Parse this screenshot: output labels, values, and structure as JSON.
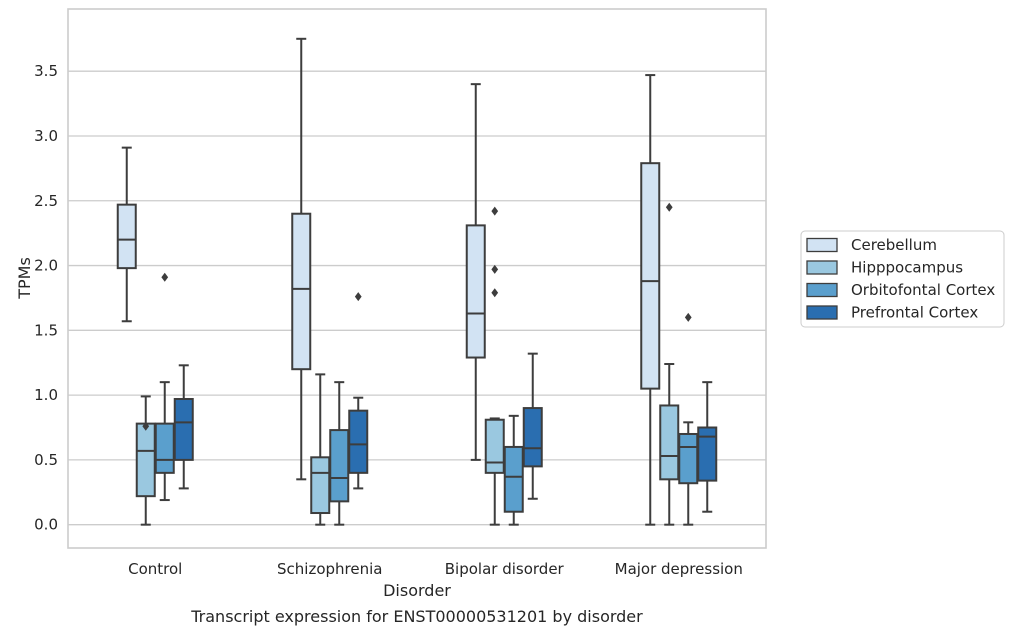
{
  "chart_data": {
    "type": "box",
    "xlabel": "Disorder",
    "ylabel": "TPMs",
    "caption": "Transcript expression for ENST00000531201 by disorder",
    "ylim": [
      -0.18,
      3.98
    ],
    "yticks": [
      0.0,
      0.5,
      1.0,
      1.5,
      2.0,
      2.5,
      3.0,
      3.5
    ],
    "ytick_labels": [
      "0.0",
      "0.5",
      "1.0",
      "1.5",
      "2.0",
      "2.5",
      "3.0",
      "3.5"
    ],
    "grid": "horizontal",
    "legend_position": "right",
    "categories": [
      "Control",
      "Schizophrenia",
      "Bipolar disorder",
      "Major depression"
    ],
    "series": [
      {
        "name": "Cerebellum",
        "color": "#d2e3f3",
        "boxes": [
          {
            "whisker_low": 1.57,
            "q1": 1.98,
            "median": 2.2,
            "q3": 2.47,
            "whisker_high": 2.91,
            "outliers": []
          },
          {
            "whisker_low": 0.35,
            "q1": 1.2,
            "median": 1.82,
            "q3": 2.4,
            "whisker_high": 3.75,
            "outliers": []
          },
          {
            "whisker_low": 0.5,
            "q1": 1.29,
            "median": 1.63,
            "q3": 2.31,
            "whisker_high": 3.4,
            "outliers": []
          },
          {
            "whisker_low": 0.0,
            "q1": 1.05,
            "median": 1.88,
            "q3": 2.79,
            "whisker_high": 3.47,
            "outliers": []
          }
        ]
      },
      {
        "name": "Hipppocampus",
        "color": "#9ac8e0",
        "boxes": [
          {
            "whisker_low": 0.0,
            "q1": 0.22,
            "median": 0.57,
            "q3": 0.78,
            "whisker_high": 0.99,
            "outliers": [
              0.76
            ]
          },
          {
            "whisker_low": 0.0,
            "q1": 0.09,
            "median": 0.4,
            "q3": 0.52,
            "whisker_high": 1.16,
            "outliers": []
          },
          {
            "whisker_low": 0.0,
            "q1": 0.4,
            "median": 0.48,
            "q3": 0.81,
            "whisker_high": 0.82,
            "outliers": [
              2.42,
              1.97,
              1.79
            ]
          },
          {
            "whisker_low": 0.0,
            "q1": 0.35,
            "median": 0.53,
            "q3": 0.92,
            "whisker_high": 1.24,
            "outliers": [
              2.45
            ]
          }
        ]
      },
      {
        "name": "Orbitofontal Cortex",
        "color": "#5a9fcd",
        "boxes": [
          {
            "whisker_low": 0.19,
            "q1": 0.4,
            "median": 0.5,
            "q3": 0.78,
            "whisker_high": 1.1,
            "outliers": [
              1.91
            ]
          },
          {
            "whisker_low": 0.0,
            "q1": 0.18,
            "median": 0.36,
            "q3": 0.73,
            "whisker_high": 1.1,
            "outliers": []
          },
          {
            "whisker_low": 0.0,
            "q1": 0.1,
            "median": 0.37,
            "q3": 0.6,
            "whisker_high": 0.84,
            "outliers": []
          },
          {
            "whisker_low": 0.0,
            "q1": 0.32,
            "median": 0.6,
            "q3": 0.7,
            "whisker_high": 0.79,
            "outliers": [
              1.6
            ]
          }
        ]
      },
      {
        "name": "Prefrontal Cortex",
        "color": "#2a6eb0",
        "boxes": [
          {
            "whisker_low": 0.28,
            "q1": 0.5,
            "median": 0.79,
            "q3": 0.97,
            "whisker_high": 1.23,
            "outliers": []
          },
          {
            "whisker_low": 0.28,
            "q1": 0.4,
            "median": 0.62,
            "q3": 0.88,
            "whisker_high": 0.98,
            "outliers": [
              1.76
            ]
          },
          {
            "whisker_low": 0.2,
            "q1": 0.45,
            "median": 0.59,
            "q3": 0.9,
            "whisker_high": 1.32,
            "outliers": []
          },
          {
            "whisker_low": 0.1,
            "q1": 0.34,
            "median": 0.68,
            "q3": 0.75,
            "whisker_high": 1.1,
            "outliers": []
          }
        ]
      }
    ]
  }
}
